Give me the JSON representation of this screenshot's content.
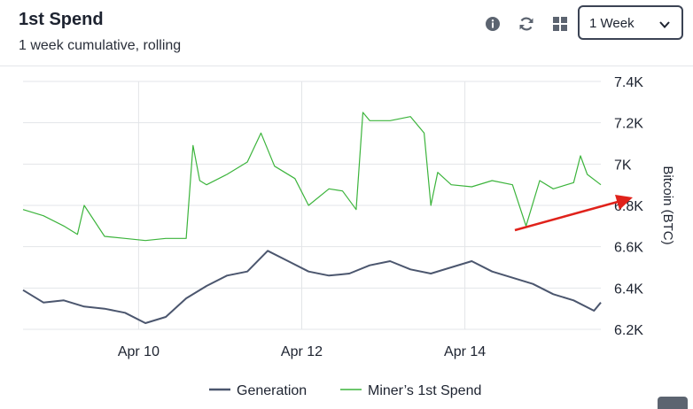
{
  "header": {
    "title": "1st Spend",
    "subtitle": "1 week cumulative, rolling",
    "range_select": {
      "value": "1 Week"
    },
    "tools": [
      "info-icon",
      "refresh-icon",
      "grid-icon"
    ]
  },
  "colors": {
    "generation": "#4b566e",
    "spend": "#3cb43c",
    "arrow": "#e0221b",
    "grid": "#e3e5e8"
  },
  "chart_data": {
    "type": "line",
    "title": "",
    "xlabel": "",
    "ylabel": "Bitcoin (BTC)",
    "ylim": [
      6200,
      7400
    ],
    "yticks": [
      6200,
      6400,
      6600,
      6800,
      7000,
      7200,
      7400
    ],
    "ytick_labels": [
      "6.2K",
      "6.4K",
      "6.6K",
      "6.8K",
      "7K",
      "7.2K",
      "7.4K"
    ],
    "x_range": [
      "2024-04-08T14:00",
      "2024-04-15T16:00"
    ],
    "xticks": [
      "2024-04-10",
      "2024-04-12",
      "2024-04-14"
    ],
    "xtick_labels": [
      "Apr 10",
      "Apr 12",
      "Apr 14"
    ],
    "grid": true,
    "legend_position": "bottom",
    "series": [
      {
        "name": "Generation",
        "x": [
          "2024-04-08T14:00",
          "2024-04-08T20:00",
          "2024-04-09T02:00",
          "2024-04-09T08:00",
          "2024-04-09T14:00",
          "2024-04-09T20:00",
          "2024-04-10T02:00",
          "2024-04-10T08:00",
          "2024-04-10T14:00",
          "2024-04-10T20:00",
          "2024-04-11T02:00",
          "2024-04-11T08:00",
          "2024-04-11T14:00",
          "2024-04-11T20:00",
          "2024-04-12T02:00",
          "2024-04-12T08:00",
          "2024-04-12T14:00",
          "2024-04-12T20:00",
          "2024-04-13T02:00",
          "2024-04-13T08:00",
          "2024-04-13T14:00",
          "2024-04-13T20:00",
          "2024-04-14T02:00",
          "2024-04-14T08:00",
          "2024-04-14T14:00",
          "2024-04-14T20:00",
          "2024-04-15T02:00",
          "2024-04-15T08:00",
          "2024-04-15T14:00",
          "2024-04-15T16:00"
        ],
        "values": [
          6390,
          6330,
          6340,
          6310,
          6300,
          6280,
          6230,
          6260,
          6350,
          6410,
          6460,
          6480,
          6580,
          6530,
          6480,
          6460,
          6470,
          6510,
          6530,
          6490,
          6470,
          6500,
          6530,
          6480,
          6450,
          6420,
          6370,
          6340,
          6290,
          6330
        ]
      },
      {
        "name": "Miner’s 1st Spend",
        "x": [
          "2024-04-08T14:00",
          "2024-04-08T20:00",
          "2024-04-09T02:00",
          "2024-04-09T06:00",
          "2024-04-09T08:00",
          "2024-04-09T14:00",
          "2024-04-09T20:00",
          "2024-04-10T02:00",
          "2024-04-10T08:00",
          "2024-04-10T14:00",
          "2024-04-10T16:00",
          "2024-04-10T18:00",
          "2024-04-10T20:00",
          "2024-04-11T02:00",
          "2024-04-11T08:00",
          "2024-04-11T12:00",
          "2024-04-11T16:00",
          "2024-04-11T22:00",
          "2024-04-12T02:00",
          "2024-04-12T08:00",
          "2024-04-12T12:00",
          "2024-04-12T16:00",
          "2024-04-12T18:00",
          "2024-04-12T20:00",
          "2024-04-13T02:00",
          "2024-04-13T08:00",
          "2024-04-13T12:00",
          "2024-04-13T14:00",
          "2024-04-13T16:00",
          "2024-04-13T20:00",
          "2024-04-14T02:00",
          "2024-04-14T08:00",
          "2024-04-14T14:00",
          "2024-04-14T18:00",
          "2024-04-14T22:00",
          "2024-04-15T02:00",
          "2024-04-15T08:00",
          "2024-04-15T10:00",
          "2024-04-15T12:00",
          "2024-04-15T16:00"
        ],
        "values": [
          6780,
          6750,
          6700,
          6660,
          6800,
          6650,
          6640,
          6630,
          6640,
          6640,
          7090,
          6920,
          6900,
          6950,
          7010,
          7150,
          6990,
          6930,
          6800,
          6880,
          6870,
          6780,
          7250,
          7210,
          7210,
          7230,
          7150,
          6800,
          6960,
          6900,
          6890,
          6920,
          6900,
          6700,
          6920,
          6880,
          6910,
          7040,
          6950,
          6900
        ]
      }
    ],
    "annotations": [
      {
        "type": "arrow",
        "direction": "up-right",
        "target": "6.8K"
      }
    ]
  },
  "legend": [
    {
      "name": "Generation"
    },
    {
      "name": "Miner’s 1st Spend"
    }
  ]
}
